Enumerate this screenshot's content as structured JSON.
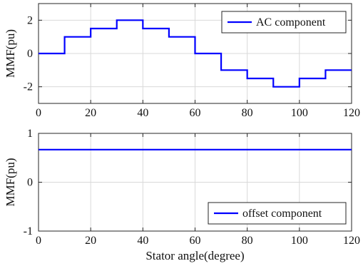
{
  "chart_data": [
    {
      "type": "line",
      "xlim": [
        0,
        120
      ],
      "ylim": [
        -3,
        3
      ],
      "x_ticks": [
        0,
        20,
        40,
        60,
        80,
        100,
        120
      ],
      "y_ticks": [
        -2,
        0,
        2
      ],
      "xlabel": "",
      "ylabel": "MMF(pu)",
      "grid": true,
      "legend_position": "top-right",
      "line_color": "#0000ff",
      "series": [
        {
          "name": "AC component",
          "x": [
            0,
            10,
            10,
            20,
            20,
            30,
            30,
            40,
            40,
            50,
            50,
            60,
            60,
            70,
            70,
            80,
            80,
            90,
            90,
            100,
            100,
            110,
            110,
            120
          ],
          "y": [
            0,
            0,
            1,
            1,
            1.5,
            1.5,
            2,
            2,
            1.5,
            1.5,
            1,
            1,
            0,
            0,
            -1,
            -1,
            -1.5,
            -1.5,
            -2,
            -2,
            -1.5,
            -1.5,
            -1,
            -1
          ]
        }
      ]
    },
    {
      "type": "line",
      "xlim": [
        0,
        120
      ],
      "ylim": [
        -1,
        1
      ],
      "x_ticks": [
        0,
        20,
        40,
        60,
        80,
        100,
        120
      ],
      "y_ticks": [
        -1,
        0,
        1
      ],
      "xlabel": "Stator angle(degree)",
      "ylabel": "MMF(pu)",
      "grid": true,
      "legend_position": "bottom-right",
      "line_color": "#0000ff",
      "series": [
        {
          "name": "offset component",
          "x": [
            0,
            120
          ],
          "y": [
            0.667,
            0.667
          ]
        }
      ]
    }
  ]
}
